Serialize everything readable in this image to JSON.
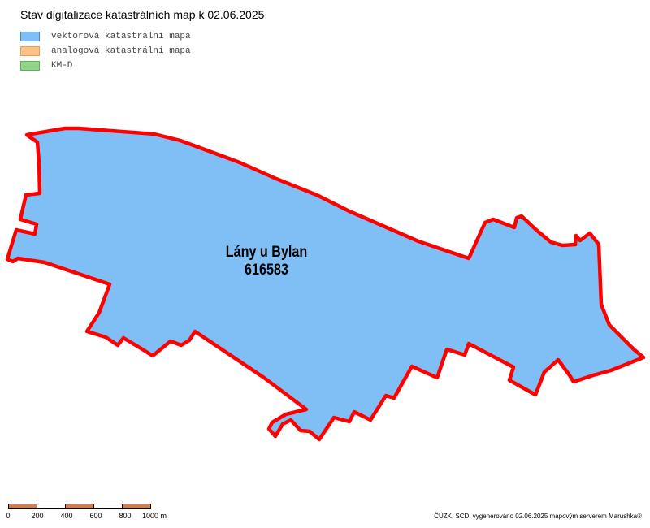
{
  "title": "Stav digitalizace katastrálních map k 02.06.2025",
  "legend": [
    {
      "label": "vektorová katastrální mapa",
      "fill": "#80bff6",
      "stroke": "#3b8fd9"
    },
    {
      "label": "analogová katastrální mapa",
      "fill": "#ffc285",
      "stroke": "#f09a4a"
    },
    {
      "label": "KM-D",
      "fill": "#8fd68a",
      "stroke": "#5bb556"
    }
  ],
  "parcel": {
    "name": "Lány u Bylan",
    "code": "616583",
    "fill": "#80bff6",
    "outline": "#ff0000"
  },
  "scale": {
    "labels": [
      "0",
      "200",
      "400",
      "600",
      "800",
      "1000 m"
    ],
    "color_a": "#e07b39",
    "color_b": "#ffffff"
  },
  "credit": "ČÚZK, SCD, vygenerováno 02.06.2025 mapovým serverem Marushka®"
}
